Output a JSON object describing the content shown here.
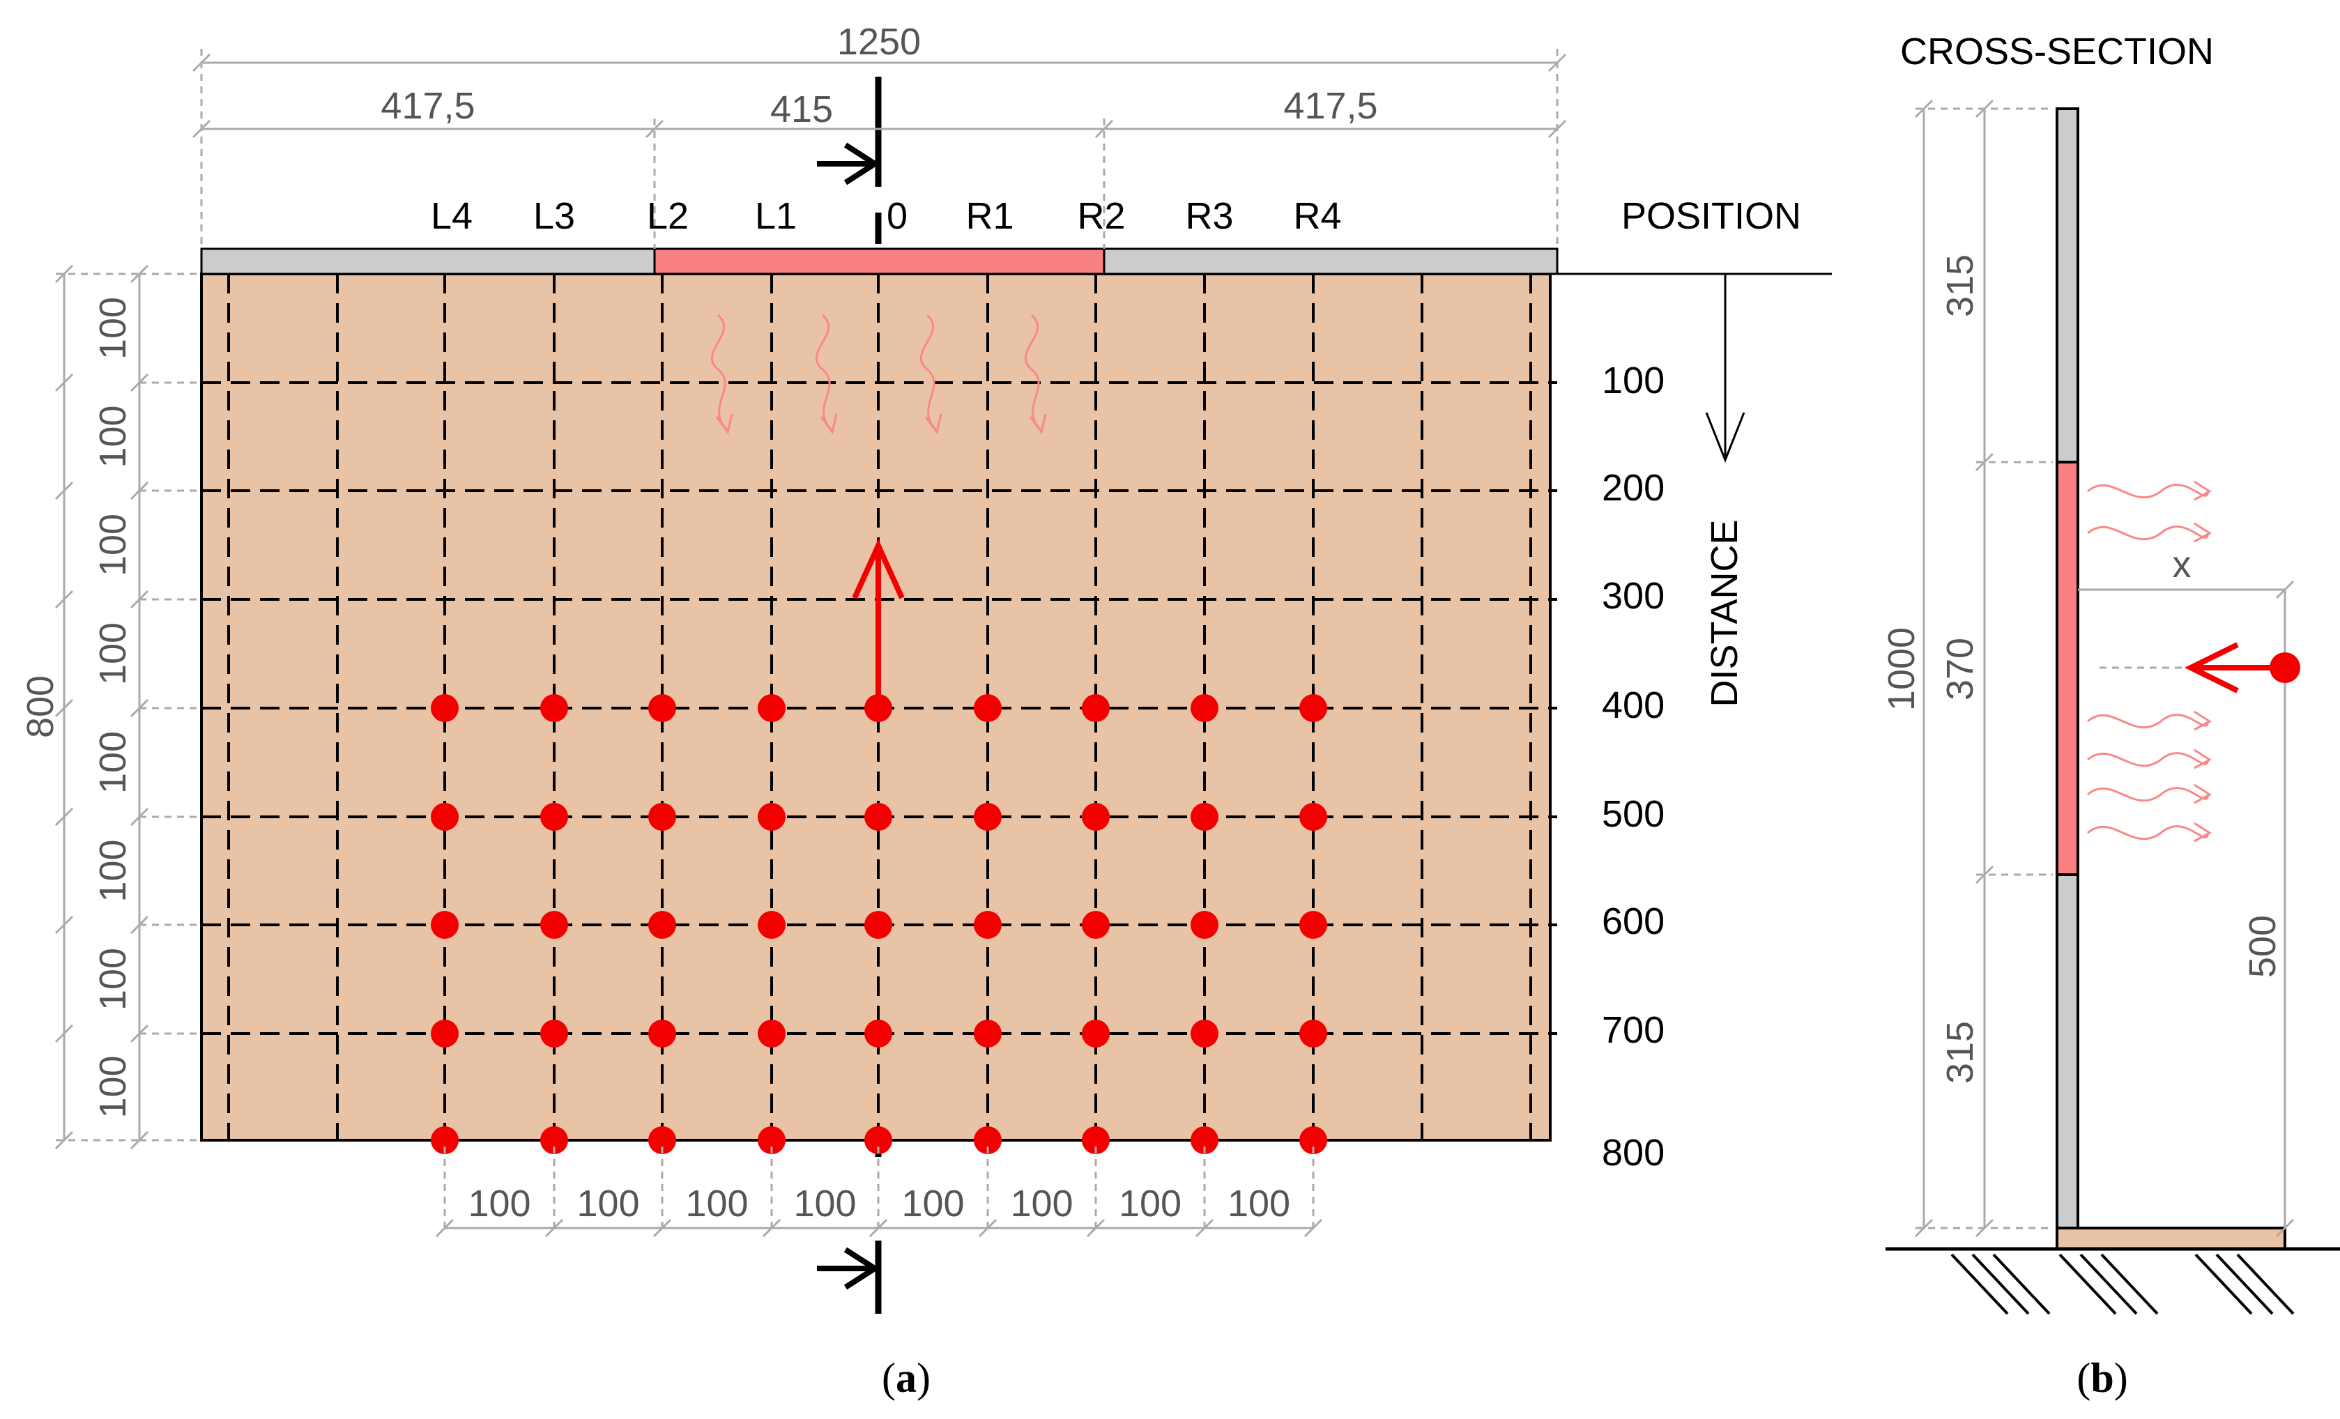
{
  "plan": {
    "dims_top": {
      "total": "1250",
      "left": "417,5",
      "middle": "415",
      "right": "417,5"
    },
    "dims_left": {
      "total": "800",
      "segments": [
        "100",
        "100",
        "100",
        "100",
        "100",
        "100",
        "100",
        "100"
      ]
    },
    "dims_bottom": [
      "100",
      "100",
      "100",
      "100",
      "100",
      "100",
      "100",
      "100"
    ],
    "position_title": "POSITION",
    "positions": [
      "L4",
      "L3",
      "L2",
      "L1",
      "0",
      "R1",
      "R2",
      "R3",
      "R4"
    ],
    "distance_title": "DISTANCE",
    "distances": [
      "100",
      "200",
      "300",
      "400",
      "500",
      "600",
      "700",
      "800"
    ],
    "measurement_rows": 5,
    "measurement_cols": 9,
    "caption": {
      "open": "(",
      "letter": "a",
      "close": ")"
    }
  },
  "section": {
    "title": "CROSS-SECTION",
    "dims_outer": "1000",
    "dims_inner": [
      "315",
      "370",
      "315"
    ],
    "dim_x": "x",
    "dim_height": "500",
    "caption": {
      "open": "(",
      "letter": "b",
      "close": ")"
    }
  },
  "colors": {
    "plate": "#E9C3A5",
    "panel_grey": "#CCCCCC",
    "panel_heated": "#F98181",
    "point": "#F20000",
    "wave": "#F98888",
    "dim_line": "#AAAAAA"
  }
}
